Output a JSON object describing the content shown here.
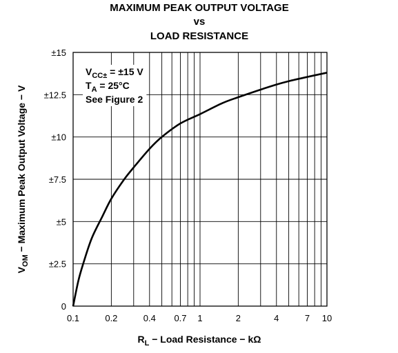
{
  "chart_data": {
    "type": "line",
    "title_lines": [
      "MAXIMUM PEAK OUTPUT VOLTAGE",
      "vs",
      "LOAD RESISTANCE"
    ],
    "xlabel": {
      "main": "R",
      "sub": "L",
      "rest": " − Load Resistance − kΩ"
    },
    "ylabel": {
      "main": "V",
      "sub": "OM",
      "rest": " − Maximum Peak Output Voltage − V"
    },
    "x_scale": "log",
    "xlim": [
      0.1,
      10
    ],
    "ylim": [
      0,
      15
    ],
    "x_ticks": [
      {
        "value": 0.1,
        "label": "0.1"
      },
      {
        "value": 0.2,
        "label": "0.2"
      },
      {
        "value": 0.4,
        "label": "0.4"
      },
      {
        "value": 0.7,
        "label": "0.7"
      },
      {
        "value": 1,
        "label": "1"
      },
      {
        "value": 2,
        "label": "2"
      },
      {
        "value": 4,
        "label": "4"
      },
      {
        "value": 7,
        "label": "7"
      },
      {
        "value": 10,
        "label": "10"
      }
    ],
    "x_gridlines": [
      0.1,
      0.2,
      0.3,
      0.4,
      0.5,
      0.6,
      0.7,
      0.8,
      0.9,
      1,
      2,
      3,
      4,
      5,
      6,
      7,
      8,
      9,
      10
    ],
    "y_ticks": [
      {
        "value": 0,
        "label": "0"
      },
      {
        "value": 2.5,
        "label": "±2.5"
      },
      {
        "value": 5,
        "label": "±5"
      },
      {
        "value": 7.5,
        "label": "±7.5"
      },
      {
        "value": 10,
        "label": "±10"
      },
      {
        "value": 12.5,
        "label": "±12.5"
      },
      {
        "value": 15,
        "label": "±15"
      }
    ],
    "grid": true,
    "annotations": [
      {
        "main": "V",
        "sub": "CC±",
        "rest": " = ±15 V"
      },
      {
        "main": "T",
        "sub": "A",
        "rest": " = 25°C"
      },
      {
        "main": "See Figure 2",
        "sub": "",
        "rest": ""
      }
    ],
    "series": [
      {
        "x": [
          0.1,
          0.11,
          0.12,
          0.14,
          0.17,
          0.2,
          0.25,
          0.3,
          0.4,
          0.5,
          0.7,
          1,
          1.5,
          2,
          3,
          4,
          5,
          7,
          10
        ],
        "y": [
          0,
          1.5,
          2.5,
          4.0,
          5.3,
          6.35,
          7.45,
          8.2,
          9.3,
          10.0,
          10.8,
          11.35,
          12.0,
          12.35,
          12.8,
          13.1,
          13.3,
          13.55,
          13.8
        ]
      }
    ]
  }
}
